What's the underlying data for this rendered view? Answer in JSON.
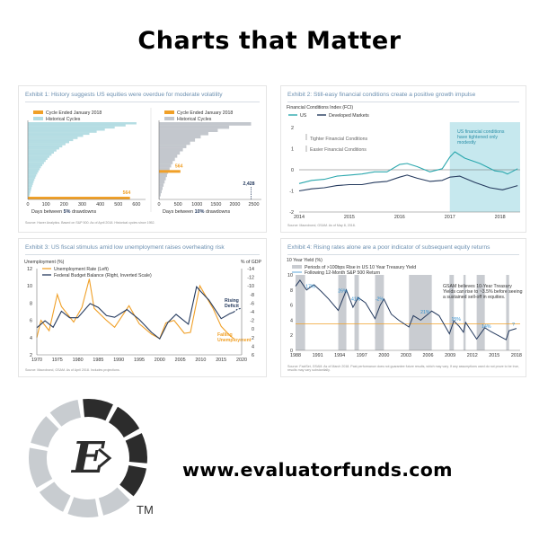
{
  "header": {
    "title": "Charts that Matter"
  },
  "footer": {
    "website": "www.evaluatorfunds.com",
    "trademark": "TM"
  },
  "logo": {
    "letter": "E",
    "colors": {
      "dark": "#2c2c2c",
      "light": "#c8ccd0",
      "accent": "#f0a028"
    }
  },
  "colors": {
    "orange": "#f0a028",
    "teal": "#2aa7ad",
    "navy": "#253a5e",
    "lightblue": "#b5dde3",
    "gray": "#c3c7cd",
    "titleblue": "#6b8fb0"
  },
  "chart_data": [
    {
      "type": "area",
      "title": "Exhibit 1: History suggests US equities were overdue for moderate volatility",
      "source": "Source: Haver Analytics. Based on S&P 500. As of April 2018. Historical cycles since 1952.",
      "left": {
        "legend": [
          "Cycle Ended January 2018",
          "Historical Cycles"
        ],
        "xlabel_parts": [
          "Days between ",
          "5%",
          " drawdowns"
        ],
        "x_ticks": [
          "0",
          "100",
          "200",
          "300",
          "400",
          "500",
          "600"
        ],
        "xlim": [
          0,
          650
        ],
        "current_value": 564,
        "current_label": "564",
        "historical_cycle_days": [
          5,
          8,
          11,
          14,
          17,
          20,
          24,
          28,
          32,
          36,
          41,
          46,
          52,
          58,
          65,
          72,
          80,
          89,
          98,
          108,
          119,
          131,
          144,
          158,
          173,
          190,
          208,
          228,
          250,
          275,
          305,
          340,
          380,
          425,
          480,
          540,
          600
        ]
      },
      "right": {
        "legend": [
          "Cycle Ended January 2018",
          "Historical Cycles"
        ],
        "xlabel_parts": [
          "Days between ",
          "10%",
          " drawdowns"
        ],
        "x_ticks": [
          "0",
          "500",
          "1000",
          "1500",
          "2000",
          "2500"
        ],
        "xlim": [
          0,
          2700
        ],
        "current_value": 564,
        "current_label": "564",
        "max_value": 2428,
        "max_label": "2,428",
        "historical_cycle_days": [
          20,
          45,
          70,
          95,
          120,
          150,
          180,
          210,
          240,
          280,
          320,
          360,
          420,
          480,
          550,
          630,
          720,
          820,
          950,
          1100,
          1300,
          1550,
          1850,
          2428
        ]
      }
    },
    {
      "type": "line",
      "title": "Exhibit 2: Still-easy financial conditions create a positive growth impulse",
      "source": "Source: Macrobond, GSAM. As of May 8, 2018.",
      "ylabel": "Financial Conditions Index (FCI)",
      "legend": [
        "US",
        "Developed Markets"
      ],
      "annotations": [
        "Tighter Financial Conditions",
        "Easier Financial Conditions",
        "US financial conditions have tightened only modestly"
      ],
      "x_ticks": [
        "2014",
        "2015",
        "2016",
        "2017",
        "2018"
      ],
      "y_ticks": [
        "2",
        "1",
        "0",
        "-1",
        "-2"
      ],
      "xlim": [
        2014.0,
        2018.4
      ],
      "ylim": [
        -2,
        2
      ],
      "highlight_range": [
        2017.0,
        2018.4
      ],
      "series": [
        {
          "name": "US",
          "x": [
            2014.0,
            2014.25,
            2014.5,
            2014.75,
            2015.0,
            2015.25,
            2015.5,
            2015.75,
            2016.0,
            2016.15,
            2016.35,
            2016.6,
            2016.85,
            2017.0,
            2017.1,
            2017.3,
            2017.6,
            2017.9,
            2018.05,
            2018.15,
            2018.35
          ],
          "values": [
            -0.65,
            -0.5,
            -0.45,
            -0.3,
            -0.25,
            -0.2,
            -0.1,
            -0.1,
            0.25,
            0.3,
            0.15,
            -0.1,
            0.05,
            0.6,
            0.85,
            0.55,
            0.3,
            -0.05,
            -0.1,
            -0.2,
            0.05
          ]
        },
        {
          "name": "Developed Markets",
          "x": [
            2014.0,
            2014.25,
            2014.5,
            2014.75,
            2015.0,
            2015.25,
            2015.5,
            2015.75,
            2016.0,
            2016.15,
            2016.35,
            2016.6,
            2016.85,
            2017.0,
            2017.2,
            2017.5,
            2017.8,
            2018.05,
            2018.2,
            2018.35
          ],
          "values": [
            -1.0,
            -0.9,
            -0.85,
            -0.75,
            -0.7,
            -0.7,
            -0.6,
            -0.55,
            -0.35,
            -0.25,
            -0.4,
            -0.55,
            -0.5,
            -0.35,
            -0.3,
            -0.6,
            -0.85,
            -0.95,
            -0.85,
            -0.75
          ]
        }
      ]
    },
    {
      "type": "line",
      "title": "Exhibit 3: US fiscal stimulus amid low unemployment raises overheating risk",
      "source": "Source: Macrobond, GSAM. As of April 2018. Includes projections.",
      "ylabel_left": "Unemployment (%)",
      "ylabel_right": "% of GDP",
      "legend": [
        "Unemployment Rate (Left)",
        "Federal Budget Balance (Right, Inverted Scale)"
      ],
      "annotations": [
        "Rising Deficit",
        "Falling Unemployment"
      ],
      "x_ticks": [
        "1970",
        "1975",
        "1980",
        "1985",
        "1990",
        "1995",
        "2000",
        "2005",
        "2010",
        "2015",
        "2020"
      ],
      "y_ticks_left": [
        "12",
        "10",
        "8",
        "6",
        "4",
        "2"
      ],
      "y_ticks_right": [
        "-14",
        "-12",
        "-10",
        "-8",
        "-6",
        "-4",
        "-2",
        "0",
        "2",
        "4",
        "6"
      ],
      "xlim": [
        1970,
        2020
      ],
      "ylim_left": [
        2,
        12
      ],
      "ylim_right": [
        6,
        -14
      ],
      "series": [
        {
          "name": "Unemployment Rate (Left)",
          "axis": "left",
          "x": [
            1970,
            1971,
            1973,
            1975,
            1976,
            1979,
            1981,
            1982.8,
            1984,
            1987,
            1989,
            1992.5,
            1995,
            1998,
            2000,
            2001.5,
            2003.5,
            2006,
            2007.5,
            2009.8,
            2011,
            2013,
            2015,
            2017,
            2018
          ],
          "values": [
            4.0,
            6.0,
            4.8,
            9.0,
            7.6,
            5.8,
            7.5,
            10.8,
            7.4,
            6.0,
            5.2,
            7.7,
            5.6,
            4.4,
            3.9,
            5.7,
            6.0,
            4.5,
            4.6,
            10.0,
            9.0,
            7.4,
            5.3,
            4.3,
            3.9
          ]
        },
        {
          "name": "Federal Budget Balance (Right, Inverted Scale)",
          "axis": "right",
          "x": [
            1970,
            1972,
            1974,
            1976,
            1978,
            1980,
            1983,
            1985,
            1987,
            1989,
            1992,
            1995,
            1998,
            2000,
            2002,
            2004,
            2007,
            2009,
            2010,
            2012,
            2015,
            2017,
            2018,
            2019,
            2020
          ],
          "values": [
            -0.3,
            -1.9,
            -0.4,
            -4.1,
            -2.6,
            -2.6,
            -5.9,
            -5.0,
            -3.1,
            -2.7,
            -4.5,
            -2.2,
            0.8,
            2.3,
            -1.5,
            -3.4,
            -1.1,
            -9.8,
            -8.7,
            -6.7,
            -2.4,
            -3.5,
            -3.9,
            -4.6,
            -4.8
          ]
        }
      ]
    },
    {
      "type": "line",
      "title": "Exhibit 4: Rising rates alone are a poor indicator of subsequent equity returns",
      "source": "Source: FactSet, GSAM. As of March 2018. Past performance does not guarantee future results, which may vary. If any assumptions used do not prove to be true, results may vary substantially.",
      "ylabel": "10 Year Yield (%)",
      "legend": [
        "Periods of >100bps Rise in US 10 Year Treasury Yield",
        "Following 12-Month S&P 500 Return"
      ],
      "annotations": [
        "GSAM believes 10-Year Treasury Yields can rise to ~3.5% before seeing a sustained sell-off in equities."
      ],
      "x_ticks": [
        "1988",
        "1991",
        "1994",
        "1997",
        "2000",
        "2003",
        "2006",
        "2009",
        "2012",
        "2015",
        "2018"
      ],
      "y_ticks": [
        "10",
        "8",
        "6",
        "4",
        "2",
        "0"
      ],
      "xlim": [
        1988,
        2018.5
      ],
      "ylim": [
        0,
        10
      ],
      "threshold": 3.5,
      "shaded_periods": [
        [
          1988.0,
          1989.3
        ],
        [
          1993.8,
          1994.9
        ],
        [
          1996.0,
          1996.6
        ],
        [
          1998.8,
          2000.0
        ],
        [
          2003.4,
          2006.5
        ],
        [
          2008.9,
          2009.5
        ],
        [
          2010.8,
          2011.1
        ],
        [
          2012.6,
          2013.7
        ],
        [
          2016.6,
          2017.0
        ]
      ],
      "returns": [
        {
          "x": 1990.0,
          "y": 8.3,
          "label": "17%"
        },
        {
          "x": 1994.4,
          "y": 7.7,
          "label": "26%"
        },
        {
          "x": 1996.2,
          "y": 6.6,
          "label": "41%"
        },
        {
          "x": 1999.4,
          "y": 6.6,
          "label": "-2%"
        },
        {
          "x": 2005.6,
          "y": 4.9,
          "label": "21%"
        },
        {
          "x": 2009.8,
          "y": 3.9,
          "label": "15%"
        },
        {
          "x": 2013.9,
          "y": 3.0,
          "label": "14%"
        },
        {
          "x": 2017.6,
          "y": 3.2,
          "label": "?"
        }
      ],
      "series": [
        {
          "name": "10 Year Yield",
          "x": [
            1988,
            1988.6,
            1989.5,
            1990.5,
            1991.5,
            1992.5,
            1993.8,
            1994.9,
            1995.8,
            1996.5,
            1997.5,
            1998.8,
            1999.5,
            2000.0,
            2001,
            2002,
            2003.4,
            2004,
            2005,
            2006.5,
            2007.5,
            2008.9,
            2009.5,
            2010.2,
            2010.8,
            2011.1,
            2012.6,
            2013.7,
            2014.5,
            2016.6,
            2017.0,
            2018.0
          ],
          "values": [
            8.5,
            9.3,
            8.0,
            8.7,
            7.8,
            6.8,
            5.3,
            8.0,
            5.7,
            7.0,
            6.3,
            4.2,
            6.0,
            6.8,
            4.8,
            4.0,
            3.1,
            4.6,
            4.0,
            5.2,
            4.6,
            2.2,
            3.9,
            3.2,
            2.4,
            3.7,
            1.5,
            3.0,
            2.5,
            1.4,
            2.6,
            2.9
          ]
        }
      ]
    }
  ]
}
